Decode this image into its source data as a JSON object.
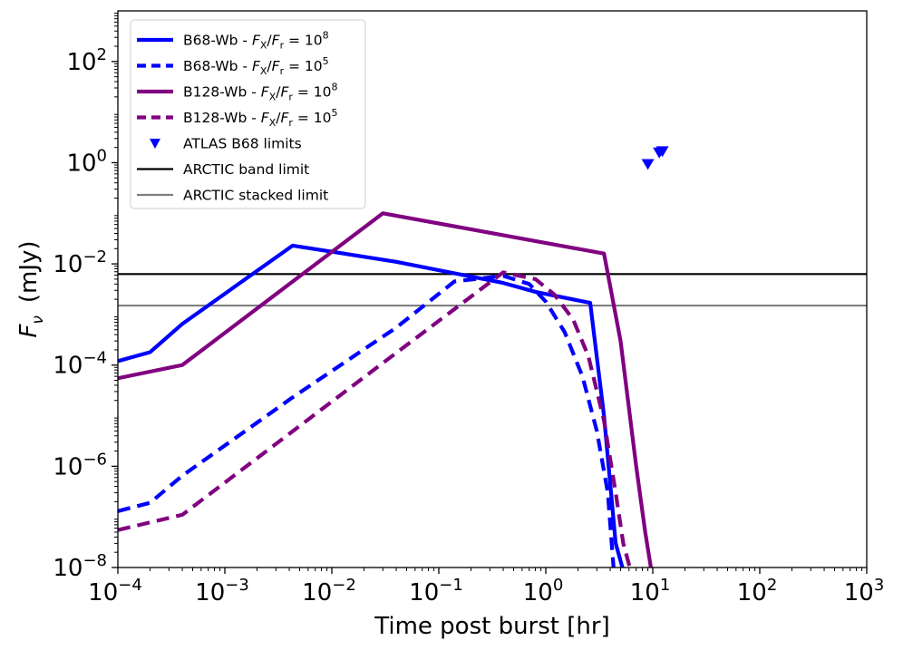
{
  "chart_data": {
    "type": "line",
    "xscale": "log",
    "yscale": "log",
    "xlim": [
      0.0001,
      1000
    ],
    "ylim": [
      1e-08,
      1000
    ],
    "xlabel": "Time post burst [hr]",
    "ylabel": "F_ν (mJy)",
    "ylabel_parts": {
      "sym": "F",
      "sub": "ν",
      "unit": "(mJy)"
    },
    "x_ticks": [
      {
        "value": 0.0001,
        "base": "10",
        "exp": "−4"
      },
      {
        "value": 0.001,
        "base": "10",
        "exp": "−3"
      },
      {
        "value": 0.01,
        "base": "10",
        "exp": "−2"
      },
      {
        "value": 0.1,
        "base": "10",
        "exp": "−1"
      },
      {
        "value": 1,
        "base": "10",
        "exp": "0"
      },
      {
        "value": 10,
        "base": "10",
        "exp": "1"
      },
      {
        "value": 100,
        "base": "10",
        "exp": "2"
      },
      {
        "value": 1000,
        "base": "10",
        "exp": "3"
      }
    ],
    "y_ticks": [
      {
        "value": 1e-08,
        "base": "10",
        "exp": "−8"
      },
      {
        "value": 1e-06,
        "base": "10",
        "exp": "−6"
      },
      {
        "value": 0.0001,
        "base": "10",
        "exp": "−4"
      },
      {
        "value": 0.01,
        "base": "10",
        "exp": "−2"
      },
      {
        "value": 1,
        "base": "10",
        "exp": "0"
      },
      {
        "value": 100,
        "base": "10",
        "exp": "2"
      }
    ],
    "series": [
      {
        "name": "B68-Wb - F_X/F_r = 10^8",
        "legend": {
          "prefix": "B68-Wb - ",
          "exp": "8"
        },
        "color": "#0000ff",
        "dash": "solid",
        "x": [
          0.0001,
          0.0002,
          0.0004,
          0.0043,
          0.04,
          0.4,
          0.8,
          2.6,
          3.5,
          4.5,
          5.2
        ],
        "y": [
          0.00012,
          0.00018,
          0.00065,
          0.023,
          0.011,
          0.0042,
          0.0028,
          0.0017,
          1e-05,
          3e-08,
          1e-08
        ]
      },
      {
        "name": "B68-Wb - F_X/F_r = 10^5",
        "legend": {
          "prefix": "B68-Wb - ",
          "exp": "5"
        },
        "color": "#0000ff",
        "dash": "dashed",
        "x": [
          0.0001,
          0.0002,
          0.0004,
          0.0043,
          0.04,
          0.14,
          0.4,
          0.7,
          1.0,
          1.5,
          2.2,
          3.0,
          3.8,
          4.3
        ],
        "y": [
          1.3e-07,
          1.9e-07,
          6.5e-07,
          2.3e-05,
          0.00055,
          0.0045,
          0.0058,
          0.004,
          0.0018,
          0.00045,
          6e-05,
          5e-06,
          3e-07,
          1e-08
        ]
      },
      {
        "name": "B128-Wb - F_X/F_r = 10^8",
        "legend": {
          "prefix": "B128-Wb - ",
          "exp": "8"
        },
        "color": "#800080",
        "dash": "solid",
        "x": [
          0.0001,
          0.0004,
          0.03,
          3.5,
          5.0,
          7.0,
          8.5,
          9.6
        ],
        "y": [
          5.5e-05,
          0.0001,
          0.1,
          0.016,
          0.0003,
          1e-06,
          5e-08,
          1e-08
        ]
      },
      {
        "name": "B128-Wb - F_X/F_r = 10^5",
        "legend": {
          "prefix": "B128-Wb - ",
          "exp": "5"
        },
        "color": "#800080",
        "dash": "dashed",
        "x": [
          0.0001,
          0.0004,
          0.03,
          0.4,
          0.8,
          1.2,
          1.8,
          2.5,
          3.5,
          4.5,
          5.3,
          6.1
        ],
        "y": [
          5.5e-08,
          1.1e-07,
          0.00011,
          0.0068,
          0.005,
          0.0025,
          0.0008,
          0.00015,
          8e-06,
          3e-07,
          3e-08,
          1e-08
        ]
      }
    ],
    "scatter": {
      "name": "ATLAS B68 limits",
      "color": "#0000ff",
      "marker": "triangle-down",
      "x": [
        9.0,
        11.5,
        12.3
      ],
      "y": [
        0.95,
        1.6,
        1.7
      ]
    },
    "hlines": [
      {
        "name": "ARCTIC band limit",
        "y": 0.0063,
        "color": "#000000"
      },
      {
        "name": "ARCTIC stacked limit",
        "y": 0.0015,
        "color": "#808080"
      }
    ],
    "legend_placement": "top-left",
    "legend_ratio": {
      "sym1": "F",
      "sub1": "X",
      "slash": "/",
      "sym2": "F",
      "sub2": "r",
      "eq": " = 10"
    },
    "grid": false
  }
}
